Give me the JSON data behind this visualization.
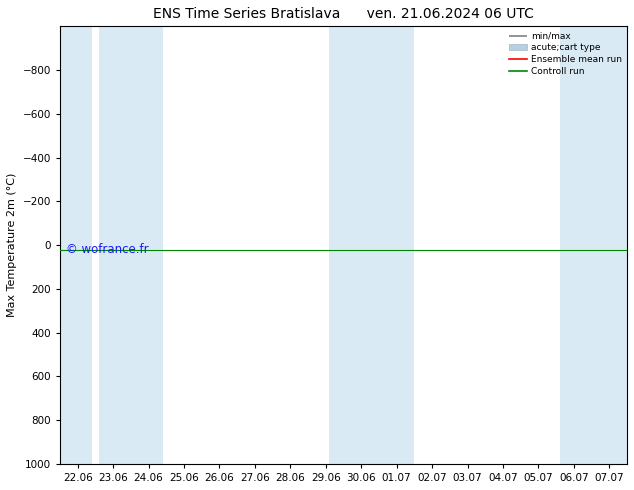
{
  "title_left": "ENS Time Series Bratislava",
  "title_right": "ven. 21.06.2024 06 UTC",
  "ylabel": "Max Temperature 2m (°C)",
  "ylim_bottom": 1000,
  "ylim_top": -1000,
  "yticks": [
    -800,
    -600,
    -400,
    -200,
    0,
    200,
    400,
    600,
    800,
    1000
  ],
  "xtick_labels": [
    "22.06",
    "23.06",
    "24.06",
    "25.06",
    "26.06",
    "27.06",
    "28.06",
    "29.06",
    "30.06",
    "01.07",
    "02.07",
    "03.07",
    "04.07",
    "05.07",
    "06.07",
    "07.07"
  ],
  "xtick_positions": [
    0,
    1,
    2,
    3,
    4,
    5,
    6,
    7,
    8,
    9,
    10,
    11,
    12,
    13,
    14,
    15
  ],
  "shaded_ranges": [
    [
      -0.5,
      0.4
    ],
    [
      0.6,
      2.4
    ],
    [
      7.1,
      9.5
    ],
    [
      13.6,
      15.5
    ]
  ],
  "shaded_color": "#daeaf5",
  "green_line_color": "#008800",
  "red_line_color": "#ff0000",
  "green_line_y": 20,
  "red_line_y": 20,
  "watermark": "© wofrance.fr",
  "watermark_color": "#1a1aff",
  "legend_labels": [
    "min/max",
    "acute;cart type",
    "Ensemble mean run",
    "Controll run"
  ],
  "legend_line_colors": [
    "#808080",
    "#b8cfe0",
    "#ff0000",
    "#008800"
  ],
  "background_color": "#ffffff",
  "title_fontsize": 10,
  "axis_fontsize": 8,
  "tick_fontsize": 7.5
}
